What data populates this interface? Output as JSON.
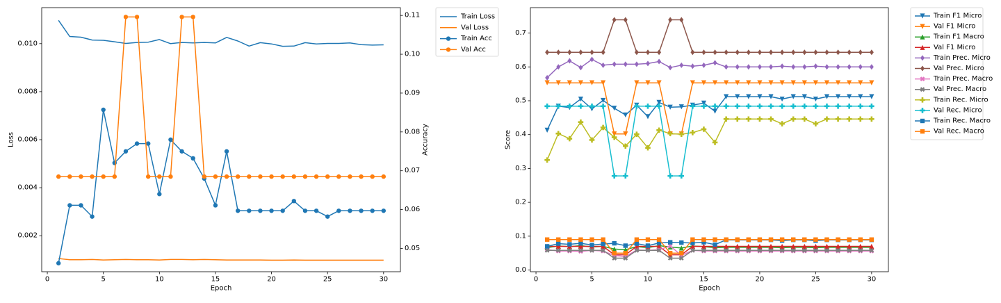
{
  "chart_data": [
    {
      "type": "line",
      "xlabel": "Epoch",
      "ylabel": "Loss",
      "ylabel_right": "Accuracy",
      "xlim": [
        -0.5,
        31.5
      ],
      "ylim": [
        0.0005,
        0.0115
      ],
      "ylim_right": [
        0.044,
        0.112
      ],
      "xticks": [
        0,
        5,
        10,
        15,
        20,
        25,
        30
      ],
      "yticks": [
        0.002,
        0.004,
        0.006,
        0.008,
        0.01
      ],
      "yticks_right": [
        0.05,
        0.06,
        0.07,
        0.08,
        0.09,
        0.1,
        0.11
      ],
      "legend": "outside-top-right",
      "x": [
        1,
        2,
        3,
        4,
        5,
        6,
        7,
        8,
        9,
        10,
        11,
        12,
        13,
        14,
        15,
        16,
        17,
        18,
        19,
        20,
        21,
        22,
        23,
        24,
        25,
        26,
        27,
        28,
        29,
        30
      ],
      "series": [
        {
          "name": "Train Loss",
          "axis": "left",
          "color": "#1f77b4",
          "marker": "none",
          "values": [
            0.01097,
            0.0103,
            0.01027,
            0.01015,
            0.01014,
            0.01008,
            0.01001,
            0.01005,
            0.01006,
            0.01017,
            0.01,
            0.01005,
            0.01003,
            0.01005,
            0.01003,
            0.01026,
            0.01011,
            0.0099,
            0.01004,
            0.00999,
            0.00989,
            0.0099,
            0.01004,
            0.00999,
            0.01001,
            0.01001,
            0.01003,
            0.00996,
            0.00994,
            0.00995
          ]
        },
        {
          "name": "Val Loss",
          "axis": "left",
          "color": "#ff7f0e",
          "marker": "none",
          "values": [
            0.00105,
            0.001,
            0.001,
            0.00101,
            0.00099,
            0.001,
            0.00101,
            0.001,
            0.001,
            0.00099,
            0.00101,
            0.00101,
            0.001,
            0.00101,
            0.001,
            0.00099,
            0.00099,
            0.00099,
            0.00099,
            0.00098,
            0.00098,
            0.00099,
            0.00098,
            0.00098,
            0.00098,
            0.00098,
            0.00098,
            0.00098,
            0.00098,
            0.00098
          ]
        },
        {
          "name": "Train Acc",
          "axis": "right",
          "color": "#1f77b4",
          "marker": "circle",
          "values": [
            0.0462,
            0.0611,
            0.0611,
            0.0582,
            0.0857,
            0.072,
            0.075,
            0.077,
            0.077,
            0.064,
            0.078,
            0.075,
            0.0732,
            0.068,
            0.0611,
            0.075,
            0.0597,
            0.0597,
            0.0597,
            0.0597,
            0.0597,
            0.0622,
            0.0597,
            0.0597,
            0.0582,
            0.0597,
            0.0597,
            0.0597,
            0.0597,
            0.0597
          ]
        },
        {
          "name": "Val Acc",
          "axis": "right",
          "color": "#ff7f0e",
          "marker": "circle",
          "values": [
            0.0685,
            0.0685,
            0.0685,
            0.0685,
            0.0685,
            0.0685,
            0.1096,
            0.1096,
            0.0685,
            0.0685,
            0.0685,
            0.1096,
            0.1096,
            0.0685,
            0.0685,
            0.0685,
            0.0685,
            0.0685,
            0.0685,
            0.0685,
            0.0685,
            0.0685,
            0.0685,
            0.0685,
            0.0685,
            0.0685,
            0.0685,
            0.0685,
            0.0685,
            0.0685
          ]
        }
      ]
    },
    {
      "type": "line",
      "xlabel": "Epoch",
      "ylabel": "Score",
      "xlim": [
        -0.5,
        31.5
      ],
      "ylim": [
        -0.005,
        0.775
      ],
      "xticks": [
        0,
        5,
        10,
        15,
        20,
        25,
        30
      ],
      "yticks": [
        0.0,
        0.1,
        0.2,
        0.3,
        0.4,
        0.5,
        0.6,
        0.7
      ],
      "legend": "outside-top-right",
      "x": [
        1,
        2,
        3,
        4,
        5,
        6,
        7,
        8,
        9,
        10,
        11,
        12,
        13,
        14,
        15,
        16,
        17,
        18,
        19,
        20,
        21,
        22,
        23,
        24,
        25,
        26,
        27,
        28,
        29,
        30
      ],
      "series": [
        {
          "name": "Train F1 Micro",
          "color": "#1f77b4",
          "marker": "tri-down",
          "values": [
            0.413,
            0.484,
            0.48,
            0.505,
            0.476,
            0.501,
            0.478,
            0.458,
            0.487,
            0.453,
            0.495,
            0.481,
            0.482,
            0.487,
            0.493,
            0.469,
            0.512,
            0.512,
            0.512,
            0.512,
            0.512,
            0.505,
            0.512,
            0.512,
            0.505,
            0.512,
            0.512,
            0.512,
            0.512,
            0.512
          ]
        },
        {
          "name": "Val F1 Micro",
          "color": "#ff7f0e",
          "marker": "tri-down",
          "values": [
            0.553,
            0.553,
            0.553,
            0.553,
            0.553,
            0.553,
            0.402,
            0.402,
            0.553,
            0.553,
            0.553,
            0.402,
            0.402,
            0.553,
            0.553,
            0.553,
            0.553,
            0.553,
            0.553,
            0.553,
            0.553,
            0.553,
            0.553,
            0.553,
            0.553,
            0.553,
            0.553,
            0.553,
            0.553,
            0.553
          ]
        },
        {
          "name": "Train F1 Macro",
          "color": "#2ca02c",
          "marker": "tri-up",
          "values": [
            0.066,
            0.071,
            0.069,
            0.072,
            0.068,
            0.07,
            0.062,
            0.06,
            0.069,
            0.066,
            0.072,
            0.068,
            0.065,
            0.071,
            0.069,
            0.066,
            0.067,
            0.067,
            0.067,
            0.067,
            0.067,
            0.066,
            0.067,
            0.067,
            0.066,
            0.067,
            0.067,
            0.067,
            0.067,
            0.067
          ]
        },
        {
          "name": "Val F1 Micro",
          "color": "#d62728",
          "marker": "tri-up",
          "values": [
            0.07,
            0.07,
            0.07,
            0.07,
            0.07,
            0.07,
            0.045,
            0.045,
            0.07,
            0.07,
            0.07,
            0.045,
            0.045,
            0.07,
            0.07,
            0.07,
            0.07,
            0.07,
            0.07,
            0.07,
            0.07,
            0.07,
            0.07,
            0.07,
            0.07,
            0.07,
            0.07,
            0.07,
            0.07,
            0.07
          ]
        },
        {
          "name": "Train Prec. Micro",
          "color": "#9467bd",
          "marker": "diamond",
          "values": [
            0.568,
            0.6,
            0.618,
            0.598,
            0.622,
            0.605,
            0.608,
            0.608,
            0.608,
            0.61,
            0.616,
            0.598,
            0.605,
            0.602,
            0.605,
            0.612,
            0.6,
            0.6,
            0.6,
            0.6,
            0.6,
            0.602,
            0.6,
            0.6,
            0.602,
            0.6,
            0.6,
            0.6,
            0.6,
            0.6
          ]
        },
        {
          "name": "Val Prec. Micro",
          "color": "#8c564b",
          "marker": "diamond",
          "values": [
            0.643,
            0.643,
            0.643,
            0.643,
            0.643,
            0.643,
            0.739,
            0.739,
            0.643,
            0.643,
            0.643,
            0.739,
            0.739,
            0.643,
            0.643,
            0.643,
            0.643,
            0.643,
            0.643,
            0.643,
            0.643,
            0.643,
            0.643,
            0.643,
            0.643,
            0.643,
            0.643,
            0.643,
            0.643,
            0.643
          ]
        },
        {
          "name": "Train Prec. Macro",
          "color": "#e377c2",
          "marker": "x-filled",
          "values": [
            0.06,
            0.056,
            0.056,
            0.055,
            0.058,
            0.056,
            0.043,
            0.04,
            0.059,
            0.058,
            0.06,
            0.071,
            0.043,
            0.058,
            0.056,
            0.056,
            0.056,
            0.056,
            0.056,
            0.056,
            0.056,
            0.056,
            0.056,
            0.056,
            0.056,
            0.056,
            0.056,
            0.056,
            0.056,
            0.056
          ]
        },
        {
          "name": "Val Prec. Macro",
          "color": "#7f7f7f",
          "marker": "x-filled",
          "values": [
            0.058,
            0.058,
            0.058,
            0.058,
            0.058,
            0.058,
            0.035,
            0.035,
            0.058,
            0.058,
            0.058,
            0.035,
            0.035,
            0.058,
            0.058,
            0.058,
            0.058,
            0.058,
            0.058,
            0.058,
            0.058,
            0.058,
            0.058,
            0.058,
            0.058,
            0.058,
            0.058,
            0.058,
            0.058,
            0.058
          ]
        },
        {
          "name": "Train Rec. Micro",
          "color": "#bcbd22",
          "marker": "plus-filled",
          "values": [
            0.325,
            0.403,
            0.388,
            0.437,
            0.384,
            0.421,
            0.392,
            0.366,
            0.401,
            0.361,
            0.413,
            0.403,
            0.401,
            0.406,
            0.416,
            0.377,
            0.446,
            0.446,
            0.446,
            0.446,
            0.446,
            0.432,
            0.446,
            0.446,
            0.432,
            0.446,
            0.446,
            0.446,
            0.446,
            0.446
          ]
        },
        {
          "name": "Val Rec. Micro",
          "color": "#17becf",
          "marker": "plus-filled",
          "values": [
            0.484,
            0.484,
            0.484,
            0.484,
            0.484,
            0.484,
            0.278,
            0.278,
            0.484,
            0.484,
            0.484,
            0.278,
            0.278,
            0.484,
            0.484,
            0.484,
            0.484,
            0.484,
            0.484,
            0.484,
            0.484,
            0.484,
            0.484,
            0.484,
            0.484,
            0.484,
            0.484,
            0.484,
            0.484,
            0.484
          ]
        },
        {
          "name": "Train Rec. Macro",
          "color": "#1f77b4",
          "marker": "square",
          "values": [
            0.07,
            0.078,
            0.076,
            0.079,
            0.074,
            0.077,
            0.079,
            0.072,
            0.078,
            0.072,
            0.08,
            0.082,
            0.081,
            0.08,
            0.082,
            0.075,
            0.089,
            0.089,
            0.089,
            0.089,
            0.089,
            0.087,
            0.089,
            0.089,
            0.087,
            0.089,
            0.089,
            0.089,
            0.089,
            0.089
          ]
        },
        {
          "name": "Val Rec. Macro",
          "color": "#ff7f0e",
          "marker": "square",
          "values": [
            0.09,
            0.09,
            0.09,
            0.09,
            0.09,
            0.09,
            0.05,
            0.05,
            0.09,
            0.09,
            0.09,
            0.05,
            0.05,
            0.09,
            0.09,
            0.09,
            0.09,
            0.09,
            0.09,
            0.09,
            0.09,
            0.09,
            0.09,
            0.09,
            0.09,
            0.09,
            0.09,
            0.09,
            0.09,
            0.09
          ]
        }
      ]
    }
  ]
}
